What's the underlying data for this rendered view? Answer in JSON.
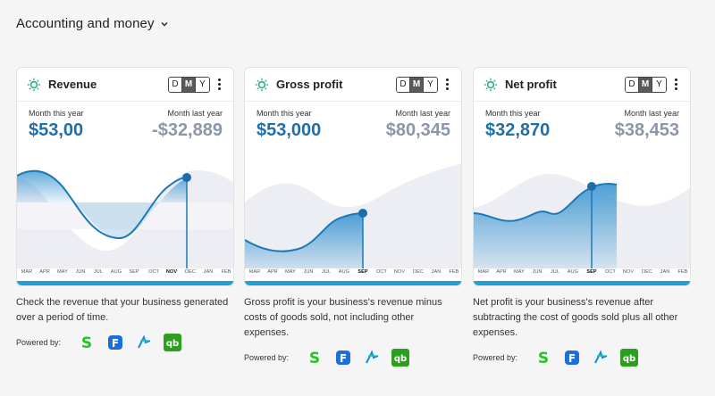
{
  "section": {
    "title": "Accounting and money"
  },
  "range_options": [
    "D",
    "M",
    "Y"
  ],
  "powered_label": "Powered by:",
  "providers": [
    "sage-logo",
    "freshbooks-logo",
    "xero-logo",
    "quickbooks-logo"
  ],
  "colors": {
    "accent": "#1f6fa8",
    "line": "#1a7ab8",
    "bar": "#1f9fd6",
    "muted": "#8a97a8"
  },
  "cards": [
    {
      "title": "Revenue",
      "current_label": "Month this year",
      "current_value": "$53,00",
      "previous_label": "Month last year",
      "previous_value": "-$32,889",
      "months": [
        "MAR",
        "APR",
        "MAY",
        "JUN",
        "JUL",
        "AUG",
        "SEP",
        "OCT",
        "NOV",
        "DEC",
        "JAN",
        "FEB"
      ],
      "selected_month": "NOV",
      "description": "Check the revenue that your business generated over a period of time."
    },
    {
      "title": "Gross profit",
      "current_label": "Month this year",
      "current_value": "$53,000",
      "previous_label": "Month last year",
      "previous_value": "$80,345",
      "months": [
        "MAR",
        "APR",
        "MAY",
        "JUN",
        "JUL",
        "AUG",
        "SEP",
        "OCT",
        "NOV",
        "DEC",
        "JAN",
        "FEB"
      ],
      "selected_month": "SEP",
      "description": "Gross profit is your business's revenue minus costs of goods sold, not including other expenses."
    },
    {
      "title": "Net profit",
      "current_label": "Month this year",
      "current_value": "$32,870",
      "previous_label": "Month last year",
      "previous_value": "$38,453",
      "months": [
        "MAR",
        "APR",
        "MAY",
        "JUN",
        "JUL",
        "AUG",
        "SEP",
        "OCT",
        "NOV",
        "DEC",
        "JAN",
        "FEB"
      ],
      "selected_month": "SEP",
      "description": "Net profit is your business's revenue after subtracting the cost of goods sold plus all other expenses."
    }
  ]
}
